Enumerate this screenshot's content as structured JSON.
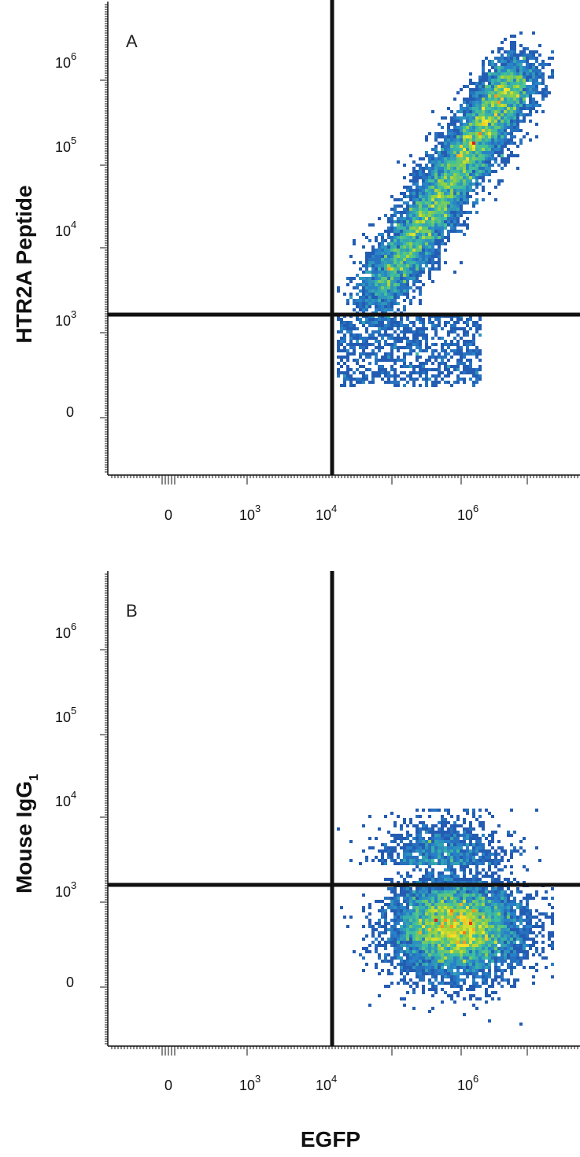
{
  "chart_data": [
    {
      "type": "scatter",
      "panel_label": "A",
      "ylabel": "HTR2A Peptide",
      "xlabel": "",
      "x_scale": "biexponential",
      "y_scale": "biexponential",
      "x_ticks": [
        {
          "base": "0",
          "exp": ""
        },
        {
          "base": "10",
          "exp": "3"
        },
        {
          "base": "10",
          "exp": "4"
        },
        {
          "base": "10",
          "exp": "6"
        }
      ],
      "y_ticks": [
        {
          "base": "10",
          "exp": "6"
        },
        {
          "base": "10",
          "exp": "5"
        },
        {
          "base": "10",
          "exp": "4"
        },
        {
          "base": "10",
          "exp": "3"
        },
        {
          "base": "0",
          "exp": ""
        }
      ],
      "quadrant_gate": {
        "x": 10000,
        "y": 1000
      },
      "populations": [
        {
          "name": "",
          "description_shape": "diagonal",
          "x_center": 1000000,
          "y_center": 50000,
          "x_range": [
            10000,
            10000000
          ],
          "y_range": [
            0,
            1500000
          ]
        }
      ],
      "grid": false
    },
    {
      "type": "scatter",
      "panel_label": "B",
      "ylabel": "Mouse IgG",
      "ylabel_sub": "1",
      "xlabel": "EGFP",
      "x_scale": "biexponential",
      "y_scale": "biexponential",
      "x_ticks": [
        {
          "base": "0",
          "exp": ""
        },
        {
          "base": "10",
          "exp": "3"
        },
        {
          "base": "10",
          "exp": "4"
        },
        {
          "base": "10",
          "exp": "6"
        }
      ],
      "y_ticks": [
        {
          "base": "10",
          "exp": "6"
        },
        {
          "base": "10",
          "exp": "5"
        },
        {
          "base": "10",
          "exp": "4"
        },
        {
          "base": "10",
          "exp": "3"
        },
        {
          "base": "0",
          "exp": ""
        }
      ],
      "quadrant_gate": {
        "x": 10000,
        "y": 1000
      },
      "populations": [
        {
          "name": "",
          "description_shape": "round",
          "x_center": 1000000,
          "y_center": 300,
          "x_range": [
            10000,
            10000000
          ],
          "y_range": [
            0,
            5000
          ]
        }
      ],
      "grid": false
    }
  ]
}
